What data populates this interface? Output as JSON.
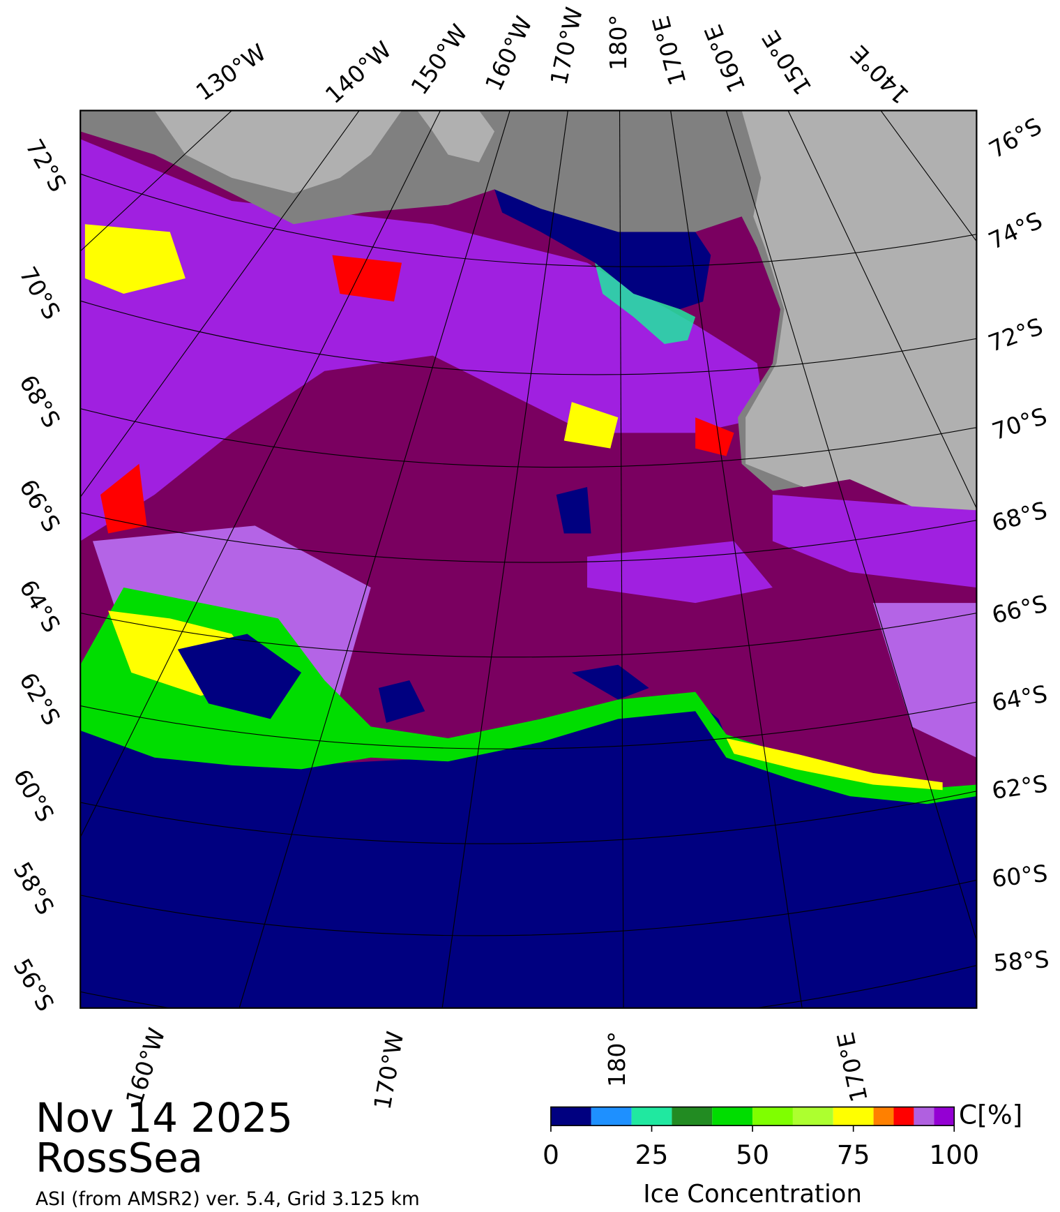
{
  "header": {
    "date": "Nov 14 2025",
    "region": "RossSea",
    "source": "ASI (from AMSR2) ver. 5.4,  Grid 3.125 km"
  },
  "graticule": {
    "top_labels": [
      "130°W",
      "140°W",
      "150°W",
      "160°W",
      "170°W",
      "180°",
      "170°E",
      "160°E",
      "150°E",
      "140°E"
    ],
    "left_labels": [
      "72°S",
      "70°S",
      "68°S",
      "66°S",
      "64°S",
      "62°S",
      "60°S",
      "58°S",
      "56°S"
    ],
    "right_labels": [
      "76°S",
      "74°S",
      "72°S",
      "70°S",
      "68°S",
      "66°S",
      "64°S",
      "62°S",
      "60°S",
      "58°S"
    ],
    "bottom_labels": [
      "160°W",
      "170°W",
      "180°",
      "170°E"
    ]
  },
  "colorbar": {
    "label": "Ice Concentration",
    "unit": "C[%]",
    "lim": [
      0,
      100
    ],
    "ticks": [
      0,
      25,
      50,
      75,
      100
    ],
    "bins": [
      0,
      10,
      20,
      30,
      40,
      50,
      60,
      70,
      80,
      85,
      90,
      95,
      100
    ],
    "colors": [
      "#000080",
      "#1e90ff",
      "#20e8a0",
      "#228b22",
      "#00dd00",
      "#7fff00",
      "#adff2f",
      "#ffff00",
      "#ff8000",
      "#ff0000",
      "#b060e0",
      "#9400d3"
    ]
  }
}
